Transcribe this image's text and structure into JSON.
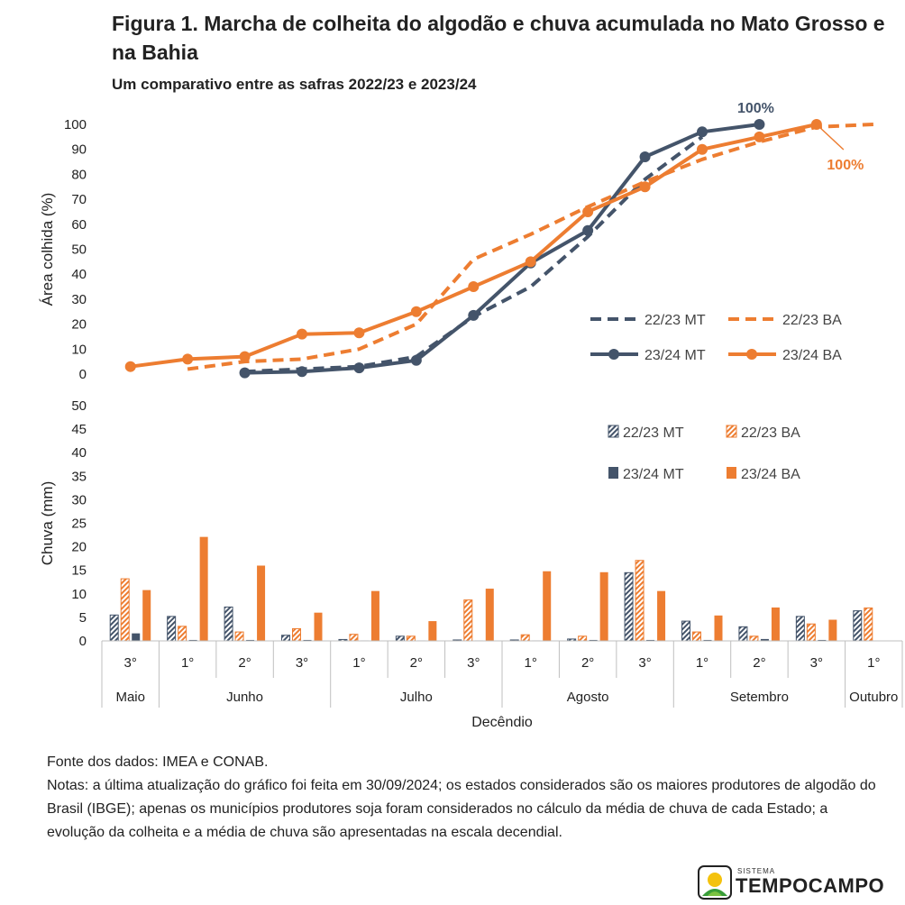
{
  "title": "Figura 1. Marcha de colheita do algodão e chuva acumulada no Mato Grosso e na Bahia",
  "subtitle": "Um comparativo entre as safras 2022/23 e 2023/24",
  "colors": {
    "mt": "#44546a",
    "ba": "#ed7d31",
    "axis": "#bfbfbf",
    "text": "#222222"
  },
  "chart_data": [
    {
      "type": "line",
      "ylabel": "Área colhida (%)",
      "ylim": [
        0,
        100
      ],
      "yticks": [
        0,
        10,
        20,
        30,
        40,
        50,
        60,
        70,
        80,
        90,
        100
      ],
      "x": [
        "Maio 3°",
        "Junho 1°",
        "Junho 2°",
        "Junho 3°",
        "Julho 1°",
        "Julho 2°",
        "Julho 3°",
        "Agosto 1°",
        "Agosto 2°",
        "Agosto 3°",
        "Setembro 1°",
        "Setembro 2°",
        "Setembro 3°",
        "Outubro 1°"
      ],
      "series": [
        {
          "name": "22/23 MT",
          "style": "dashed",
          "values": [
            null,
            null,
            1,
            2,
            3,
            7,
            23,
            35,
            55,
            78,
            95,
            null,
            null,
            null
          ]
        },
        {
          "name": "22/23 BA",
          "style": "dashed",
          "values": [
            null,
            2,
            5,
            6,
            10,
            20,
            46,
            56,
            67,
            77,
            86,
            93,
            99,
            100
          ]
        },
        {
          "name": "23/24 MT",
          "style": "solid-marker",
          "values": [
            null,
            null,
            0.5,
            1,
            2.5,
            5.5,
            23.5,
            44.5,
            57.5,
            87,
            97,
            100,
            null,
            null
          ]
        },
        {
          "name": "23/24 BA",
          "style": "solid-marker",
          "values": [
            3,
            6,
            7,
            16,
            16.5,
            25,
            35,
            45,
            65,
            75,
            90,
            95,
            100,
            null
          ]
        }
      ],
      "annotations": [
        {
          "text": "100%",
          "series": "23/24 MT"
        },
        {
          "text": "100%",
          "series": "23/24 BA"
        }
      ],
      "legend": "center-right"
    },
    {
      "type": "bar",
      "ylabel": "Chuva (mm)",
      "xlabel": "Decêndio",
      "ylim": [
        0,
        50
      ],
      "yticks": [
        0,
        5,
        10,
        15,
        20,
        25,
        30,
        35,
        40,
        45,
        50
      ],
      "categories": [
        "3°",
        "1°",
        "2°",
        "3°",
        "1°",
        "2°",
        "3°",
        "1°",
        "2°",
        "3°",
        "1°",
        "2°",
        "3°",
        "1°"
      ],
      "months": [
        {
          "label": "Maio",
          "span": 1
        },
        {
          "label": "Junho",
          "span": 3
        },
        {
          "label": "Julho",
          "span": 3
        },
        {
          "label": "Agosto",
          "span": 3
        },
        {
          "label": "Setembro",
          "span": 3
        },
        {
          "label": "Outubro",
          "span": 1
        }
      ],
      "series": [
        {
          "name": "22/23 MT",
          "pattern": "hatched",
          "values": [
            5.5,
            5.2,
            7.2,
            1.2,
            0.3,
            1.0,
            0.2,
            0.2,
            0.4,
            14.5,
            4.2,
            3.0,
            5.2,
            6.4
          ]
        },
        {
          "name": "22/23 BA",
          "pattern": "hatched",
          "values": [
            13.2,
            3.1,
            1.9,
            2.6,
            1.4,
            1.0,
            8.7,
            1.3,
            1.0,
            17.1,
            1.9,
            1.0,
            3.6,
            7.0
          ]
        },
        {
          "name": "23/24 MT",
          "pattern": "solid",
          "values": [
            1.6,
            0.2,
            0.2,
            0.2,
            0.1,
            0.1,
            0.1,
            0.1,
            0.2,
            0.2,
            0.2,
            0.4,
            0.2,
            0
          ]
        },
        {
          "name": "23/24 BA",
          "pattern": "solid",
          "values": [
            10.8,
            22.1,
            16.0,
            6.0,
            10.6,
            4.2,
            11.1,
            14.8,
            14.6,
            10.6,
            5.4,
            7.1,
            4.5,
            0
          ]
        }
      ],
      "legend": "top-right"
    }
  ],
  "footer": {
    "source": "Fonte dos dados: IMEA e CONAB.",
    "notes": "Notas: a última atualização do gráfico foi feita em 30/09/2024; os estados considerados são os maiores produtores de algodão do Brasil (IBGE); apenas os municípios produtores soja foram considerados no cálculo da média de chuva de cada Estado; a evolução da colheita e a média de chuva são apresentadas na escala decendial."
  },
  "logo": {
    "small": "SISTEMA",
    "main": "TEMPOCAMPO"
  }
}
